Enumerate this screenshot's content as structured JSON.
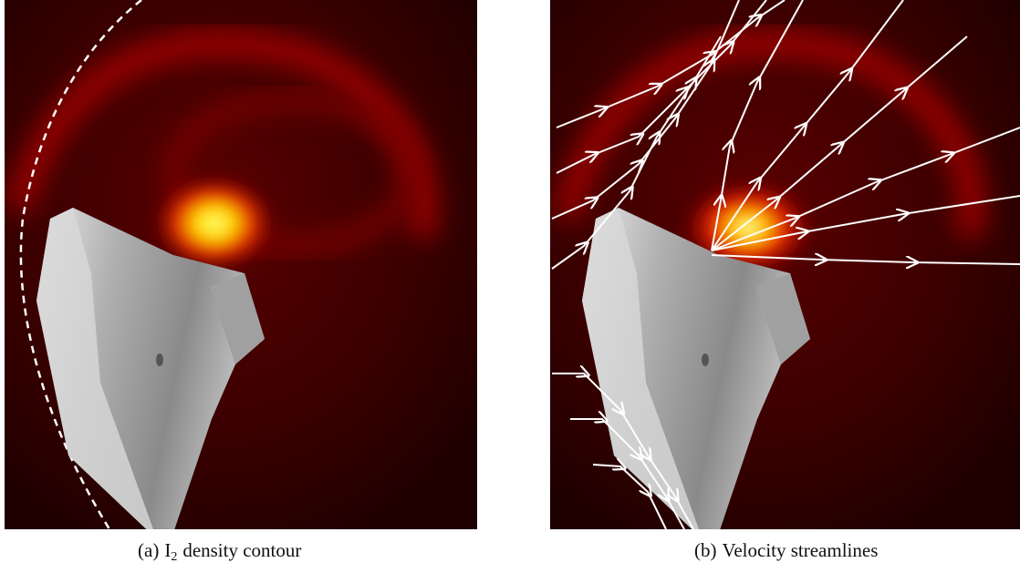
{
  "panels": [
    {
      "label": "(a)",
      "caption_main": "I",
      "caption_sub": "2",
      "caption_rest": "density contour"
    },
    {
      "label": "(b)",
      "caption_main": "Velocity streamlines"
    }
  ]
}
